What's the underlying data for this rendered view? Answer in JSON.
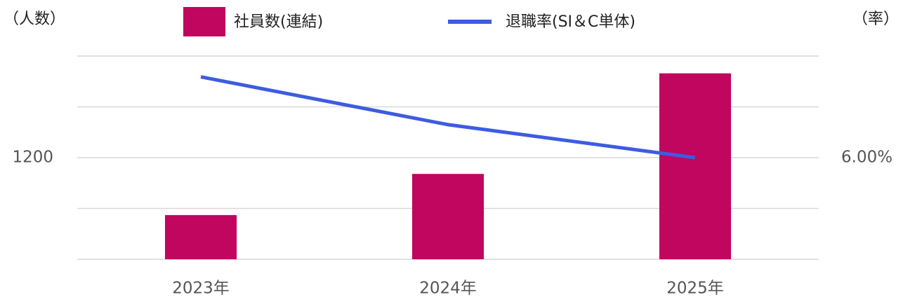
{
  "chart_data": {
    "type": "bar",
    "y_label": "（人数）",
    "y2_label": "（率）",
    "categories": [
      "2023年",
      "2024年",
      "2025年"
    ],
    "series": [
      {
        "name": "社員数(連結)",
        "type": "bar",
        "color": "#c0065e",
        "values": [
          1087,
          1168,
          1366
        ]
      },
      {
        "name": "退職率(SI＆C単体)",
        "type": "line",
        "axis": "y2",
        "color": "#3d5ce0",
        "values": [
          7.59,
          6.65,
          6.0
        ]
      }
    ],
    "ylim": [
      1000,
      1400
    ],
    "yticks": [
      {
        "value": 1000,
        "label": null
      },
      {
        "value": 1100,
        "label": null
      },
      1200,
      {
        "value": 1300,
        "label": null
      },
      {
        "value": 1400,
        "label": null
      }
    ],
    "y2lim": [
      4,
      8
    ],
    "y2ticks": [
      {
        "value": 6,
        "label": "6.00%"
      }
    ],
    "grid": true
  }
}
